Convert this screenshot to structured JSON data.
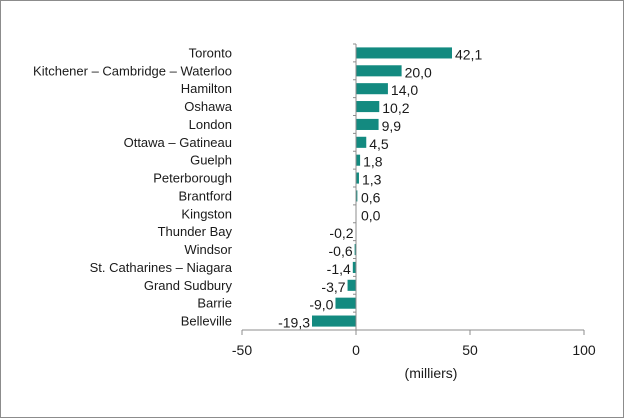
{
  "chart_data": {
    "type": "bar",
    "orientation": "horizontal",
    "categories": [
      "Toronto",
      "Kitchener – Cambridge – Waterloo",
      "Hamilton",
      "Oshawa",
      "London",
      "Ottawa – Gatineau",
      "Guelph",
      "Peterborough",
      "Brantford",
      "Kingston",
      "Thunder Bay",
      "Windsor",
      "St. Catharines – Niagara",
      "Grand Sudbury",
      "Barrie",
      "Belleville"
    ],
    "values": [
      42.1,
      20.0,
      14.0,
      10.2,
      9.9,
      4.5,
      1.8,
      1.3,
      0.6,
      0.0,
      -0.2,
      -0.6,
      -1.4,
      -3.7,
      -9.0,
      -19.3
    ],
    "data_labels": [
      "42,1",
      "20,0",
      "14,0",
      "10,2",
      "9,9",
      "4,5",
      "1,8",
      "1,3",
      "0,6",
      "0,0",
      "-0,2",
      "-0,6",
      "-1,4",
      "-3,7",
      "-9,0",
      "-19,3"
    ],
    "xlim": [
      -50,
      100
    ],
    "x_ticks": [
      -50,
      0,
      50,
      100
    ],
    "x_tick_labels": [
      "-50",
      "0",
      "50",
      "100"
    ],
    "xlabel": "(milliers)",
    "title": "",
    "bar_color": "#138a80",
    "grid": false,
    "legend": "none"
  }
}
